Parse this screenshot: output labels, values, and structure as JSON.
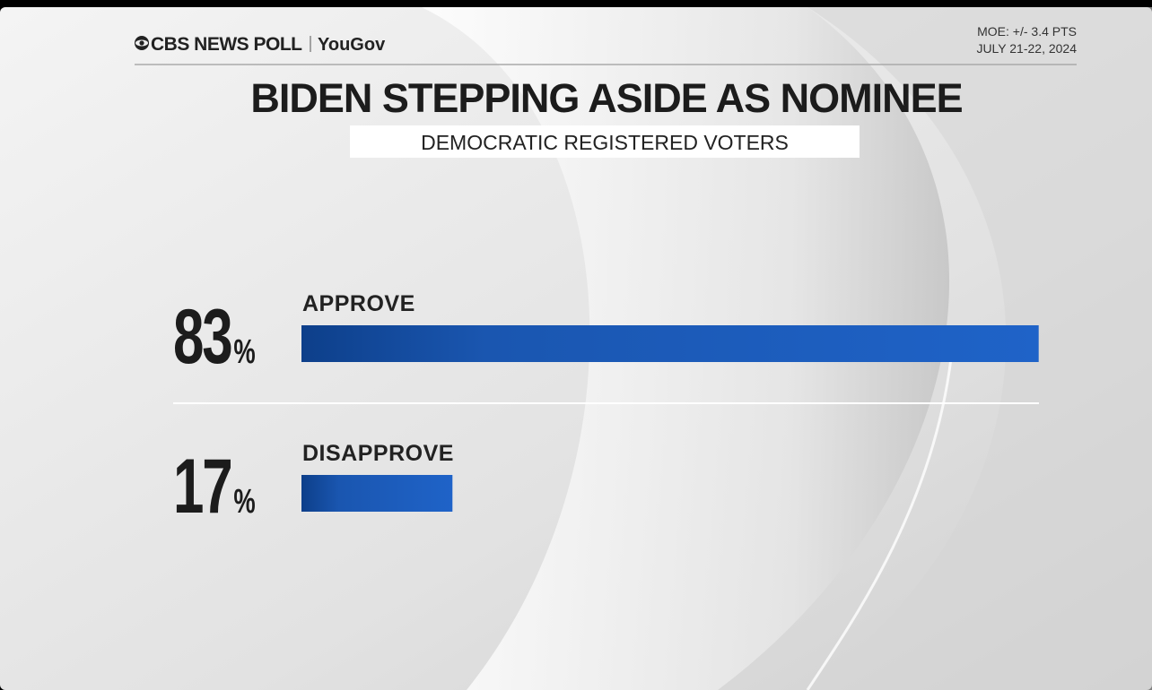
{
  "header": {
    "brand": "CBS NEWS POLL",
    "partner": "YouGov",
    "moe": "MOE: +/- 3.4 PTS",
    "dates": "JULY 21-22, 2024"
  },
  "chart_data": {
    "type": "bar",
    "orientation": "horizontal",
    "title": "BIDEN STEPPING ASIDE AS NOMINEE",
    "subtitle": "DEMOCRATIC REGISTERED VOTERS",
    "categories": [
      "APPROVE",
      "DISAPPROVE"
    ],
    "values": [
      83,
      17
    ],
    "value_labels": [
      "83%",
      "17%"
    ],
    "color": "#1d5fc0"
  }
}
